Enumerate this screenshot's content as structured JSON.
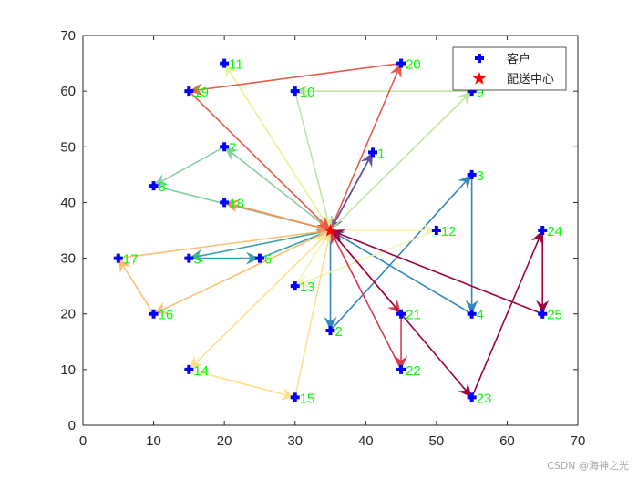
{
  "chart_data": {
    "type": "scatter",
    "title": "",
    "xlabel": "",
    "ylabel": "",
    "xlim": [
      0,
      70
    ],
    "ylim": [
      0,
      70
    ],
    "xticks": [
      0,
      10,
      20,
      30,
      40,
      50,
      60,
      70
    ],
    "yticks": [
      0,
      10,
      20,
      30,
      40,
      50,
      60,
      70
    ],
    "grid": false,
    "legend": {
      "position": "northeast",
      "entries": [
        {
          "label": "客户",
          "marker": "plus-filled",
          "color": "#0000ff"
        },
        {
          "label": "配送中心",
          "marker": "pentagram",
          "color": "#ff0000"
        }
      ]
    },
    "depot": {
      "x": 35,
      "y": 35
    },
    "customers": [
      {
        "id": 1,
        "x": 41,
        "y": 49
      },
      {
        "id": 2,
        "x": 35,
        "y": 17
      },
      {
        "id": 3,
        "x": 55,
        "y": 45
      },
      {
        "id": 4,
        "x": 55,
        "y": 20
      },
      {
        "id": 5,
        "x": 15,
        "y": 30
      },
      {
        "id": 6,
        "x": 25,
        "y": 30
      },
      {
        "id": 7,
        "x": 20,
        "y": 50
      },
      {
        "id": 8,
        "x": 10,
        "y": 43
      },
      {
        "id": 9,
        "x": 55,
        "y": 60
      },
      {
        "id": 10,
        "x": 30,
        "y": 60
      },
      {
        "id": 11,
        "x": 20,
        "y": 65
      },
      {
        "id": 12,
        "x": 50,
        "y": 35
      },
      {
        "id": 13,
        "x": 30,
        "y": 25
      },
      {
        "id": 14,
        "x": 15,
        "y": 10
      },
      {
        "id": 15,
        "x": 30,
        "y": 5
      },
      {
        "id": 16,
        "x": 10,
        "y": 20
      },
      {
        "id": 17,
        "x": 5,
        "y": 30
      },
      {
        "id": 18,
        "x": 20,
        "y": 40
      },
      {
        "id": 19,
        "x": 15,
        "y": 60
      },
      {
        "id": 20,
        "x": 45,
        "y": 65
      },
      {
        "id": 21,
        "x": 45,
        "y": 20
      },
      {
        "id": 22,
        "x": 45,
        "y": 10
      },
      {
        "id": 23,
        "x": 55,
        "y": 5
      },
      {
        "id": 24,
        "x": 65,
        "y": 35
      },
      {
        "id": 25,
        "x": 65,
        "y": 20
      }
    ],
    "routes": [
      {
        "color": "#5e4fa2",
        "stops": [
          1
        ]
      },
      {
        "color": "#3288bd",
        "stops": [
          2,
          3,
          4
        ]
      },
      {
        "color": "#3aa0b0",
        "stops": [
          5,
          6
        ]
      },
      {
        "color": "#86cfa5",
        "stops": [
          7,
          8
        ]
      },
      {
        "color": "#bfe5a0",
        "stops": [
          9,
          10
        ]
      },
      {
        "color": "#e6f598",
        "stops": [
          11
        ]
      },
      {
        "color": "#f6f1b0",
        "stops": [
          12,
          13
        ]
      },
      {
        "color": "#fee08b",
        "stops": [
          14,
          15
        ]
      },
      {
        "color": "#fdbf6f",
        "stops": [
          16,
          17
        ]
      },
      {
        "color": "#f98e52",
        "stops": [
          18
        ]
      },
      {
        "color": "#e55c4a",
        "stops": [
          20,
          19
        ]
      },
      {
        "color": "#d53e4f",
        "stops": [
          21,
          22
        ]
      },
      {
        "color": "#9e0142",
        "stops": [
          23,
          24,
          25
        ]
      }
    ],
    "label_color": "#00ff00"
  },
  "watermark": "CSDN @海神之光"
}
